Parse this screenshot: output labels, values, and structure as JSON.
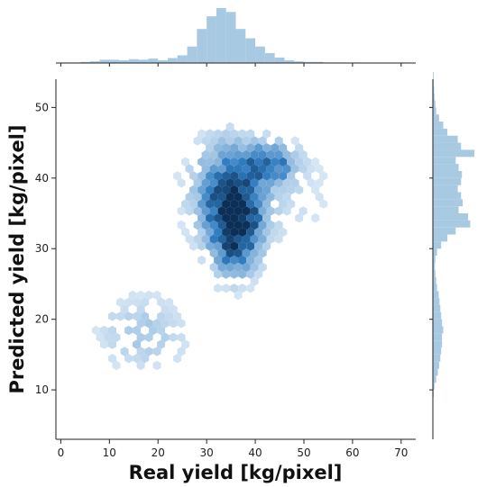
{
  "chart_data": {
    "type": "hexbin_jointplot",
    "xlabel": "Real yield [kg/pixel]",
    "ylabel": "Predicted yield [kg/pixel]",
    "xlim": [
      -1,
      73
    ],
    "ylim": [
      3,
      54
    ],
    "xticks": [
      0,
      10,
      20,
      30,
      40,
      50,
      60,
      70
    ],
    "yticks": [
      10,
      20,
      30,
      40,
      50
    ],
    "colors": {
      "hex_dark": "#0b2f57",
      "hex_mid": "#2f7cc0",
      "hex_light": "#eaf3fb",
      "marginal": "#a8c9e2"
    },
    "grid": false,
    "legend": "none",
    "clusters": [
      {
        "x": 36,
        "y": 34,
        "sx": 3.2,
        "sy": 4.5,
        "weight": 1.0
      },
      {
        "x": 43,
        "y": 42,
        "sx": 3.5,
        "sy": 1.8,
        "weight": 0.55
      },
      {
        "x": 33,
        "y": 38,
        "sx": 5.0,
        "sy": 5.5,
        "weight": 0.35
      },
      {
        "x": 17,
        "y": 18,
        "sx": 7.0,
        "sy": 4.0,
        "weight": 0.2
      },
      {
        "x": 45,
        "y": 38,
        "sx": 9.0,
        "sy": 6.0,
        "weight": 0.12
      }
    ],
    "marginal_x": {
      "bin_start": 0,
      "bin_width": 2,
      "heights": [
        1,
        1,
        2,
        3,
        6,
        6,
        5,
        7,
        6,
        8,
        5,
        9,
        14,
        30,
        62,
        85,
        100,
        93,
        62,
        45,
        30,
        18,
        10,
        5,
        3,
        2,
        2,
        1,
        1,
        1,
        1,
        0,
        0,
        0,
        0,
        1
      ]
    },
    "marginal_y": {
      "bin_start": 4,
      "bin_width": 1,
      "heights": [
        0,
        0,
        0,
        0,
        0,
        2,
        4,
        8,
        12,
        15,
        18,
        20,
        22,
        22,
        25,
        22,
        20,
        18,
        16,
        14,
        10,
        8,
        6,
        5,
        6,
        10,
        20,
        35,
        55,
        90,
        85,
        62,
        72,
        68,
        60,
        68,
        70,
        62,
        55,
        100,
        68,
        60,
        35,
        25,
        15,
        8,
        6,
        4,
        3,
        2,
        2
      ]
    }
  }
}
